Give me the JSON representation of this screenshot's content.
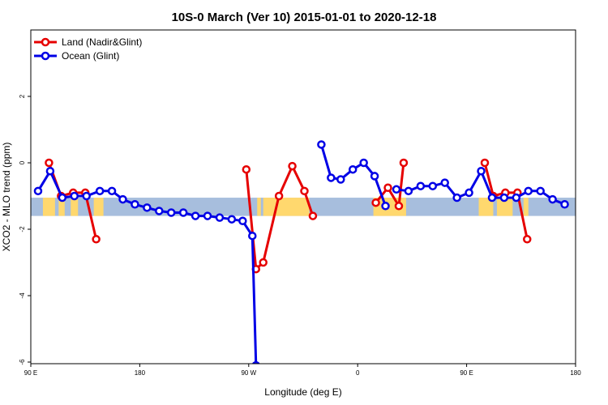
{
  "chart_data": {
    "type": "line",
    "title": "10S-0 March (Ver 10)   2015-01-01 to 2020-12-18",
    "xlabel": "Longitude (deg E)",
    "ylabel": "XCO2 - MLO trend (ppm)",
    "xlim": [
      90,
      540
    ],
    "ylim": [
      -6,
      4
    ],
    "x_ticks": [
      {
        "value": 90,
        "label": "90 E"
      },
      {
        "value": 180,
        "label": "180"
      },
      {
        "value": 270,
        "label": "90 W"
      },
      {
        "value": 360,
        "label": "0"
      },
      {
        "value": 450,
        "label": "90 E"
      },
      {
        "value": 540,
        "label": "180"
      }
    ],
    "y_ticks": [
      {
        "value": -6,
        "label": "-6"
      },
      {
        "value": -4,
        "label": "-4"
      },
      {
        "value": -2,
        "label": "-2"
      },
      {
        "value": 0,
        "label": "0"
      },
      {
        "value": 2,
        "label": "2"
      }
    ],
    "legend": {
      "placement": "top-left"
    },
    "band": {
      "y_top": -1.05,
      "y_bottom": -1.6,
      "color": "#a7bedd",
      "land_color": "#ffd86e"
    },
    "land_segments": [
      [
        100,
        110
      ],
      [
        113,
        118
      ],
      [
        123,
        129
      ],
      [
        142,
        150
      ],
      [
        277,
        280
      ],
      [
        282,
        320
      ],
      [
        373,
        400
      ],
      [
        460,
        472
      ],
      [
        475,
        488
      ],
      [
        497,
        501
      ]
    ],
    "series": [
      {
        "name": "Land (Nadir&Glint)",
        "color": "#e60000",
        "segments": [
          [
            [
              105,
              0.0
            ],
            [
              115,
              -1.0
            ],
            [
              125,
              -0.9
            ],
            [
              135,
              -0.9
            ],
            [
              144,
              -2.3
            ]
          ],
          [
            [
              268,
              -0.2
            ],
            [
              276,
              -3.2
            ],
            [
              282,
              -3.0
            ],
            [
              295,
              -1.0
            ],
            [
              306,
              -0.1
            ],
            [
              316,
              -0.85
            ],
            [
              323,
              -1.6
            ]
          ],
          [
            [
              375,
              -1.2
            ],
            [
              385,
              -0.75
            ],
            [
              394,
              -1.3
            ],
            [
              398,
              0.0
            ]
          ],
          [
            [
              465,
              0.0
            ],
            [
              472,
              -1.0
            ],
            [
              482,
              -0.9
            ],
            [
              492,
              -0.9
            ],
            [
              500,
              -2.3
            ]
          ]
        ]
      },
      {
        "name": "Ocean (Glint)",
        "color": "#0000e6",
        "segments": [
          [
            [
              96,
              -0.85
            ],
            [
              106,
              -0.25
            ],
            [
              116,
              -1.05
            ],
            [
              126,
              -1.0
            ],
            [
              136,
              -1.0
            ],
            [
              147,
              -0.85
            ],
            [
              157,
              -0.85
            ],
            [
              166,
              -1.1
            ],
            [
              176,
              -1.25
            ],
            [
              186,
              -1.35
            ],
            [
              196,
              -1.45
            ],
            [
              206,
              -1.5
            ],
            [
              216,
              -1.5
            ],
            [
              226,
              -1.6
            ],
            [
              236,
              -1.6
            ],
            [
              246,
              -1.65
            ],
            [
              256,
              -1.7
            ],
            [
              265,
              -1.75
            ],
            [
              273,
              -2.2
            ],
            [
              276,
              -6.1
            ]
          ],
          [
            [
              330,
              0.55
            ],
            [
              338,
              -0.45
            ],
            [
              346,
              -0.5
            ],
            [
              356,
              -0.2
            ],
            [
              365,
              0.0
            ],
            [
              374,
              -0.4
            ],
            [
              383,
              -1.3
            ]
          ],
          [
            [
              392,
              -0.8
            ],
            [
              402,
              -0.85
            ],
            [
              412,
              -0.7
            ],
            [
              422,
              -0.7
            ],
            [
              432,
              -0.6
            ],
            [
              442,
              -1.05
            ],
            [
              452,
              -0.9
            ],
            [
              462,
              -0.25
            ],
            [
              471,
              -1.05
            ],
            [
              481,
              -1.05
            ],
            [
              491,
              -1.05
            ],
            [
              501,
              -0.85
            ],
            [
              511,
              -0.85
            ],
            [
              521,
              -1.1
            ],
            [
              531,
              -1.25
            ]
          ]
        ]
      }
    ]
  }
}
